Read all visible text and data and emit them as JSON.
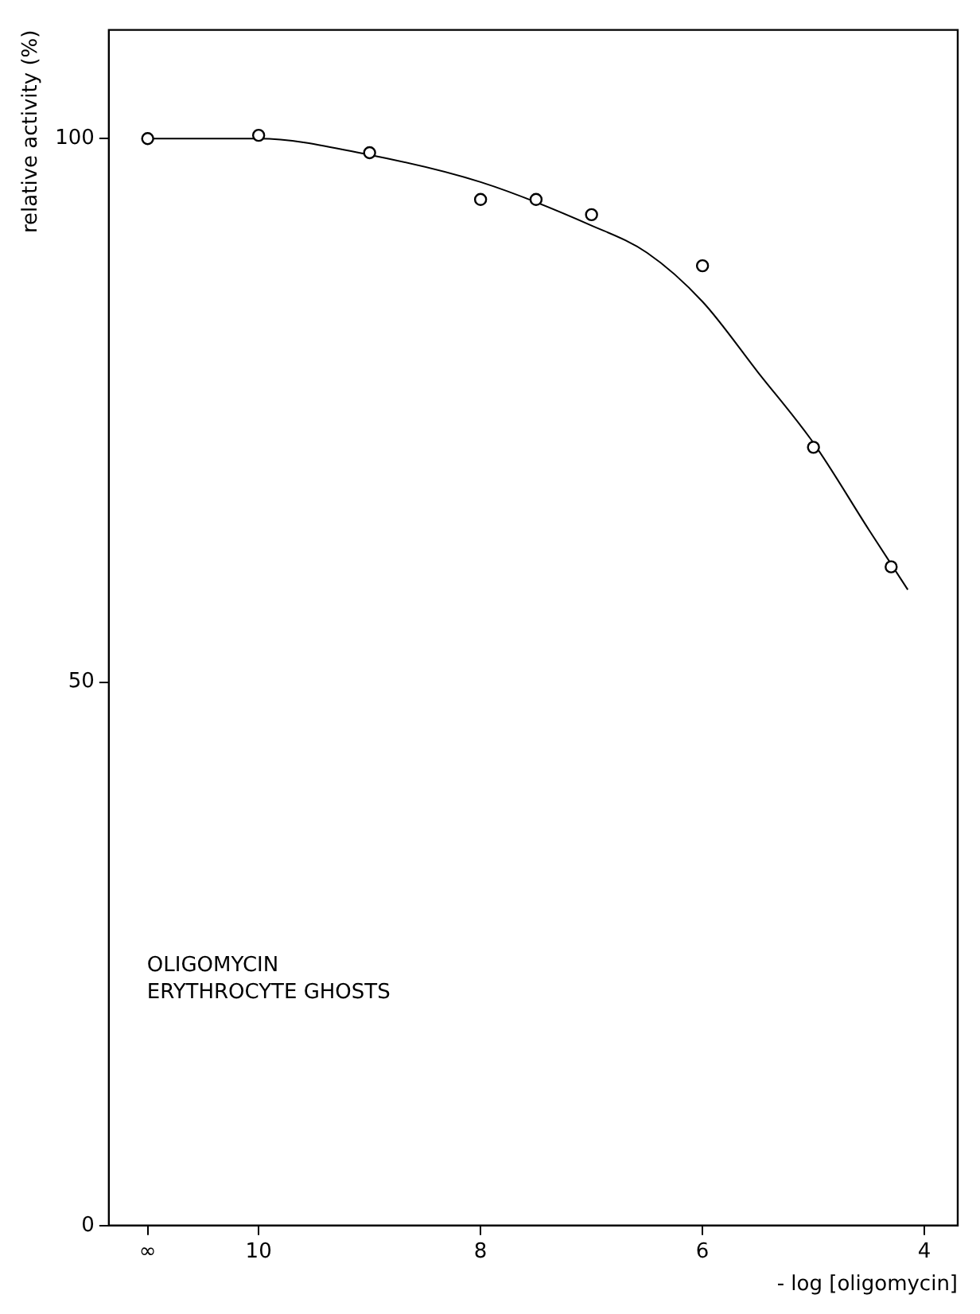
{
  "chart_data": {
    "type": "scatter",
    "ylabel": "relative activity (%)",
    "xlabel": "- log [oligomycin]",
    "annotations": [
      "OLIGOMYCIN",
      "ERYTHROCYTE GHOSTS"
    ],
    "series": [
      {
        "color": "#000000",
        "marker": "circle",
        "x": [
          11,
          10,
          9,
          8,
          7.5,
          7,
          6,
          5,
          4.3
        ],
        "values": [
          100,
          100.3,
          98.7,
          94.4,
          94.4,
          93.0,
          88.3,
          71.6,
          60.6
        ]
      },
      {
        "type": "line",
        "color": "#000000",
        "marker": "none",
        "x": [
          11,
          10,
          9,
          8,
          7,
          6.5,
          6,
          5.5,
          5,
          4.5,
          4.15
        ],
        "values": [
          100,
          100,
          98.5,
          96,
          92,
          89.5,
          85,
          78.5,
          72,
          64,
          58.5
        ]
      }
    ],
    "xlim": [
      11.35,
      3.7
    ],
    "xticks": [
      {
        "value": 11,
        "label": "∞"
      },
      10,
      8,
      6,
      4
    ],
    "ylim": [
      0,
      110
    ],
    "yticks": [
      0,
      50,
      100
    ],
    "grid": false,
    "legend": false
  }
}
